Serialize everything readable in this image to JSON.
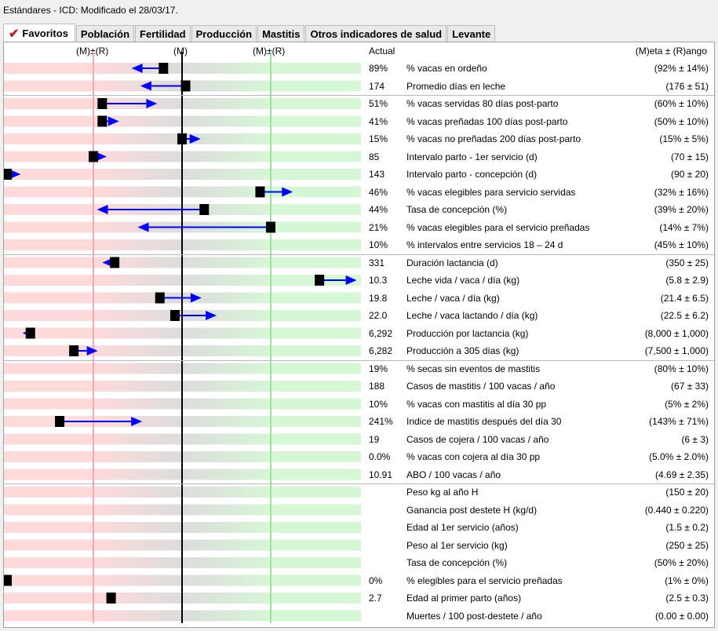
{
  "window": {
    "title": "Estándares - ICD: Modificado el 28/03/17."
  },
  "tabs": [
    {
      "label": "Favoritos",
      "active": true,
      "icon": "checkmark-icon"
    },
    {
      "label": "Población"
    },
    {
      "label": "Fertilidad"
    },
    {
      "label": "Producción"
    },
    {
      "label": "Mastitis"
    },
    {
      "label": "Otros indicadores de salud"
    },
    {
      "label": "Levante"
    }
  ],
  "header": {
    "left_scale": "(M)±(R)",
    "middle_scale": "(M)",
    "right_scale": "(M)±(R)",
    "actual": "Actual",
    "target": "(M)eta ± (R)ango"
  },
  "colors": {
    "low_zone": "#ffdada",
    "mid_zone": "#dcdcdc",
    "high_zone": "#d6f7d6",
    "low_line": "#f4a8b4",
    "mean_line": "#000000",
    "high_line": "#9be39b",
    "arrow": "#0000ff",
    "marker": "#000000"
  },
  "groups": [
    {
      "rows": [
        {
          "actual": "89%",
          "name": "% vacas en ordeño",
          "target": "(92% ± 14%)",
          "norm_value": -0.21,
          "prev_norm": -0.57
        },
        {
          "actual": "174",
          "name": "Promedio días en leche",
          "target": "(176 ± 51)",
          "norm_value": 0.04,
          "prev_norm": -0.47
        }
      ]
    },
    {
      "rows": [
        {
          "actual": "51%",
          "name": "% vacas servidas 80 días post-parto",
          "target": "(60% ± 10%)",
          "norm_value": -0.9,
          "prev_norm": -0.28
        },
        {
          "actual": "41%",
          "name": "% vacas preñadas 100 días post-parto",
          "target": "(50% ± 10%)",
          "norm_value": -0.9,
          "prev_norm": -0.71
        },
        {
          "actual": "15%",
          "name": "% vacas no preñadas 200 días post-parto",
          "target": "(15% ± 5%)",
          "norm_value": 0.0,
          "prev_norm": 0.21
        },
        {
          "actual": "85",
          "name": "Intervalo parto - 1er servicio (d)",
          "target": "(70 ± 15)",
          "norm_value": -1.0,
          "prev_norm": -0.85
        },
        {
          "actual": "143",
          "name": "Intervalo parto - concepción (d)",
          "target": "(90 ± 20)",
          "norm_value": -1.98,
          "prev_norm": -1.82
        },
        {
          "actual": "46%",
          "name": "% vacas elegibles para servicio servidas",
          "target": "(32% ± 16%)",
          "norm_value": 0.88,
          "prev_norm": 1.25
        },
        {
          "actual": "44%",
          "name": "Tasa de concepción (%)",
          "target": "(39% ± 20%)",
          "norm_value": 0.25,
          "prev_norm": -0.96
        },
        {
          "actual": "21%",
          "name": "% vacas elegibles para el servicio preñadas",
          "target": "(14% ± 7%)",
          "norm_value": 1.0,
          "prev_norm": -0.5
        },
        {
          "actual": "10%",
          "name": "% intervalos entre servicios 18 – 24 d",
          "target": "(45% ± 10%)"
        }
      ]
    },
    {
      "rows": [
        {
          "actual": "331",
          "name": "Duración lactancia (d)",
          "target": "(350 ± 25)",
          "norm_value": -0.76,
          "prev_norm": -0.9
        },
        {
          "actual": "10.3",
          "name": "Leche vida / vaca / día (kg)",
          "target": "(5.8 ± 2.9)",
          "norm_value": 1.55,
          "prev_norm": 1.97
        },
        {
          "actual": "19.8",
          "name": "Leche / vaca / día (kg)",
          "target": "(21.4 ± 6.5)",
          "norm_value": -0.25,
          "prev_norm": 0.22
        },
        {
          "actual": "22.0",
          "name": "Leche / vaca lactando / día (kg)",
          "target": "(22.5 ± 6.2)",
          "norm_value": -0.08,
          "prev_norm": 0.39
        },
        {
          "actual": "6,292",
          "name": "Producción por lactancia (kg)",
          "target": "(8,000 ± 1,000)",
          "norm_value": -1.71,
          "prev_norm": -1.8
        },
        {
          "actual": "6,282",
          "name": "Producción a 305 días (kg)",
          "target": "(7,500 ± 1,000)",
          "norm_value": -1.22,
          "prev_norm": -0.95
        }
      ]
    },
    {
      "rows": [
        {
          "actual": "19%",
          "name": "% secas sin eventos de mastitis",
          "target": "(80% ± 10%)"
        },
        {
          "actual": "188",
          "name": "Casos de mastitis / 100 vacas / año",
          "target": "(67 ± 33)"
        },
        {
          "actual": "10%",
          "name": "% vacas con mastitis al día 30 pp",
          "target": "(5% ± 2%)"
        },
        {
          "actual": "241%",
          "name": "Indice de mastitis después del día 30",
          "target": "(143% ± 71%)",
          "norm_value": -1.38,
          "prev_norm": -0.45
        },
        {
          "actual": "19",
          "name": "Casos de cojera / 100 vacas / año",
          "target": "(6 ± 3)"
        },
        {
          "actual": "0.0%",
          "name": "% vacas con cojera al día 30 pp",
          "target": "(5.0% ± 2.0%)"
        },
        {
          "actual": "10.91",
          "name": "ABO / 100 vacas / año",
          "target": "(4.69 ± 2.35)"
        }
      ]
    },
    {
      "rows": [
        {
          "actual": "",
          "name": "Peso kg al año H",
          "target": "(150 ± 20)"
        },
        {
          "actual": "",
          "name": "Ganancia post destete H (kg/d)",
          "target": "(0.440 ± 0.220)"
        },
        {
          "actual": "",
          "name": "Edad al 1er servicio (años)",
          "target": "(1.5 ± 0.2)"
        },
        {
          "actual": "",
          "name": "Peso al 1er servicio (kg)",
          "target": "(250 ± 25)"
        },
        {
          "actual": "",
          "name": "Tasa de concepción (%)",
          "target": "(50% ± 20%)"
        },
        {
          "actual": "0%",
          "name": "% elegibles para el servicio preñadas",
          "target": "(1% ± 0%)",
          "norm_value": -2.0
        },
        {
          "actual": "2.7",
          "name": "Edad al primer parto (años)",
          "target": "(2.5 ± 0.3)",
          "norm_value": -0.8
        },
        {
          "actual": "",
          "name": "Muertes / 100 post-destete / año",
          "target": "(0.00 ± 0.00)"
        }
      ]
    }
  ]
}
